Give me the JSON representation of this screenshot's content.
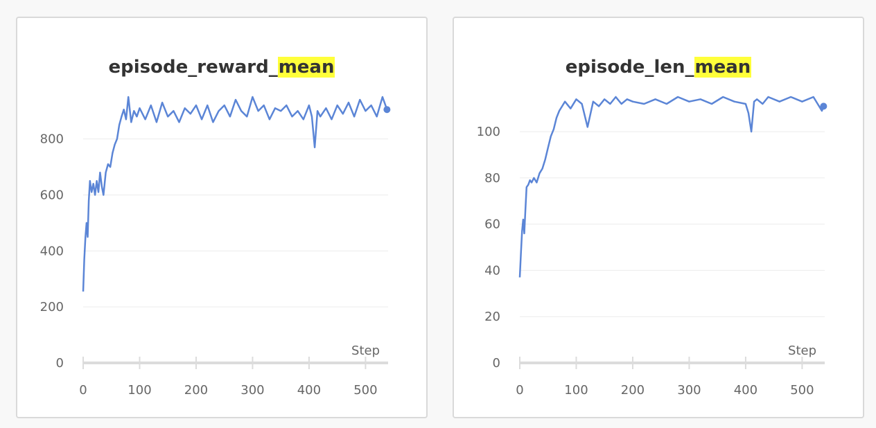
{
  "colors": {
    "line": "#5b85d6",
    "grid": "#ececec",
    "axis_base": "#dcdcdc",
    "tick_text": "#666666",
    "highlight": "#ffff3a"
  },
  "chart_data": [
    {
      "type": "line",
      "title": "episode_reward_mean",
      "title_plain": "episode_reward_",
      "title_highlight": "mean",
      "xlabel": "Step",
      "ylabel": "",
      "xlim": [
        0,
        540
      ],
      "ylim": [
        0,
        950
      ],
      "x_ticks": [
        0,
        100,
        200,
        300,
        400,
        500
      ],
      "y_ticks": [
        0,
        200,
        400,
        600,
        800
      ],
      "grid": true,
      "series": [
        {
          "x": [
            0,
            2,
            4,
            6,
            8,
            10,
            12,
            15,
            18,
            21,
            24,
            27,
            30,
            33,
            36,
            40,
            44,
            48,
            52,
            56,
            60,
            64,
            68,
            72,
            76,
            80,
            85,
            90,
            95,
            100,
            110,
            120,
            130,
            140,
            150,
            160,
            170,
            180,
            190,
            200,
            210,
            220,
            230,
            240,
            250,
            260,
            270,
            280,
            290,
            300,
            310,
            320,
            330,
            340,
            350,
            360,
            370,
            380,
            390,
            400,
            405,
            410,
            415,
            420,
            430,
            440,
            450,
            460,
            470,
            480,
            490,
            500,
            510,
            520,
            530,
            538
          ],
          "y": [
            255,
            370,
            450,
            500,
            450,
            580,
            650,
            610,
            640,
            600,
            650,
            610,
            680,
            630,
            600,
            680,
            710,
            700,
            750,
            780,
            800,
            850,
            880,
            905,
            870,
            950,
            860,
            900,
            880,
            910,
            870,
            920,
            860,
            930,
            880,
            900,
            860,
            910,
            890,
            920,
            870,
            920,
            860,
            900,
            920,
            880,
            940,
            900,
            880,
            950,
            900,
            920,
            870,
            910,
            900,
            920,
            880,
            900,
            870,
            920,
            880,
            770,
            900,
            880,
            910,
            870,
            920,
            890,
            930,
            880,
            940,
            900,
            920,
            880,
            950,
            905
          ]
        }
      ]
    },
    {
      "type": "line",
      "title": "episode_len_mean",
      "title_plain": "episode_len_",
      "title_highlight": "mean",
      "xlabel": "Step",
      "ylabel": "",
      "xlim": [
        0,
        540
      ],
      "ylim": [
        0,
        115
      ],
      "x_ticks": [
        0,
        100,
        200,
        300,
        400,
        500
      ],
      "y_ticks": [
        0,
        20,
        40,
        60,
        80,
        100
      ],
      "grid": true,
      "series": [
        {
          "x": [
            0,
            2,
            4,
            6,
            8,
            10,
            12,
            15,
            18,
            21,
            25,
            30,
            35,
            40,
            45,
            50,
            55,
            60,
            65,
            70,
            75,
            80,
            90,
            100,
            110,
            120,
            130,
            140,
            150,
            160,
            170,
            180,
            190,
            200,
            220,
            240,
            260,
            280,
            300,
            320,
            340,
            360,
            380,
            400,
            405,
            410,
            415,
            420,
            430,
            440,
            460,
            480,
            500,
            520,
            535,
            538
          ],
          "y": [
            37,
            47,
            57,
            62,
            56,
            66,
            76,
            77,
            79,
            78,
            80,
            78,
            82,
            84,
            88,
            93,
            98,
            101,
            106,
            109,
            111,
            113,
            110,
            114,
            112,
            102,
            113,
            111,
            114,
            112,
            115,
            112,
            114,
            113,
            112,
            114,
            112,
            115,
            113,
            114,
            112,
            115,
            113,
            112,
            108,
            100,
            113,
            114,
            112,
            115,
            113,
            115,
            113,
            115,
            109,
            111
          ]
        }
      ]
    }
  ]
}
